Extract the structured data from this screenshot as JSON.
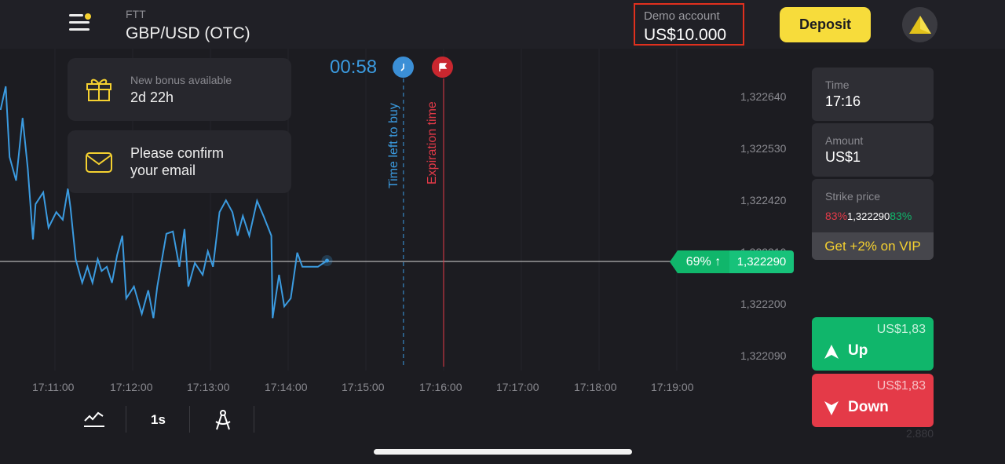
{
  "header": {
    "asset_category": "FTT",
    "asset_name": "GBP/USD (OTC)",
    "account_label": "Demo account",
    "balance": "US$10.000",
    "deposit_label": "Deposit"
  },
  "notifications": [
    {
      "title": "New bonus available",
      "value": "2d 22h",
      "icon": "gift-icon"
    },
    {
      "text_line1": "Please confirm",
      "text_line2": "your email",
      "icon": "envelope-icon"
    }
  ],
  "timer": {
    "countdown": "00:58",
    "buy_label": "Time left to buy",
    "expiration_label": "Expiration time"
  },
  "chart_data": {
    "type": "line",
    "x_ticks": [
      "17:11:00",
      "17:12:00",
      "17:13:00",
      "17:14:00",
      "17:15:00",
      "17:16:00",
      "17:17:00",
      "17:18:00",
      "17:19:00"
    ],
    "y_ticks": [
      "1,322640",
      "1,322530",
      "1,322420",
      "1,322310",
      "1,322200",
      "1,322090"
    ],
    "current_price": "1,322290",
    "current_payout": "69%",
    "buy_deadline": "17:15:29",
    "expiration": "17:16:00",
    "line_color": "#3b9be0",
    "points": [
      [
        "17:10:18",
        1322610
      ],
      [
        "17:10:22",
        1322660
      ],
      [
        "17:10:25",
        1322510
      ],
      [
        "17:10:30",
        1322460
      ],
      [
        "17:10:35",
        1322593
      ],
      [
        "17:10:39",
        1322485
      ],
      [
        "17:10:43",
        1322335
      ],
      [
        "17:10:45",
        1322410
      ],
      [
        "17:10:51",
        1322435
      ],
      [
        "17:10:55",
        1322360
      ],
      [
        "17:11:01",
        1322393
      ],
      [
        "17:11:06",
        1322377
      ],
      [
        "17:11:10",
        1322443
      ],
      [
        "17:11:12",
        1322402
      ],
      [
        "17:11:16",
        1322293
      ],
      [
        "17:11:21",
        1322243
      ],
      [
        "17:11:25",
        1322277
      ],
      [
        "17:11:29",
        1322243
      ],
      [
        "17:11:33",
        1322293
      ],
      [
        "17:11:36",
        1322268
      ],
      [
        "17:11:40",
        1322277
      ],
      [
        "17:11:44",
        1322243
      ],
      [
        "17:11:48",
        1322302
      ],
      [
        "17:11:52",
        1322343
      ],
      [
        "17:11:55",
        1322210
      ],
      [
        "17:12:01",
        1322235
      ],
      [
        "17:12:07",
        1322177
      ],
      [
        "17:12:12",
        1322227
      ],
      [
        "17:12:16",
        1322168
      ],
      [
        "17:12:19",
        1322235
      ],
      [
        "17:12:26",
        1322347
      ],
      [
        "17:12:31",
        1322352
      ],
      [
        "17:12:36",
        1322277
      ],
      [
        "17:12:40",
        1322357
      ],
      [
        "17:12:43",
        1322235
      ],
      [
        "17:12:48",
        1322285
      ],
      [
        "17:12:54",
        1322260
      ],
      [
        "17:12:58",
        1322310
      ],
      [
        "17:13:02",
        1322277
      ],
      [
        "17:13:07",
        1322393
      ],
      [
        "17:13:12",
        1322418
      ],
      [
        "17:13:17",
        1322393
      ],
      [
        "17:13:21",
        1322343
      ],
      [
        "17:13:25",
        1322385
      ],
      [
        "17:13:30",
        1322343
      ],
      [
        "17:13:36",
        1322417
      ],
      [
        "17:13:41",
        1322385
      ],
      [
        "17:13:47",
        1322343
      ],
      [
        "17:13:48",
        1322168
      ],
      [
        "17:13:53",
        1322260
      ],
      [
        "17:13:57",
        1322193
      ],
      [
        "17:14:02",
        1322210
      ],
      [
        "17:14:07",
        1322307
      ],
      [
        "17:14:11",
        1322277
      ],
      [
        "17:14:23",
        1322277
      ],
      [
        "17:14:30",
        1322290
      ]
    ]
  },
  "panel": {
    "time_label": "Time",
    "time_value": "17:16",
    "amount_label": "Amount",
    "amount_value": "US$1",
    "strike_label": "Strike price",
    "strike_down_pct": "83%",
    "strike_value": "1,322290",
    "strike_up_pct": "83%",
    "vip_label": "Get +2% on VIP"
  },
  "trade": {
    "up_payout": "US$1,83",
    "up_label": "Up",
    "down_payout": "US$1,83",
    "down_label": "Down",
    "footer_value": "2.880"
  },
  "toolbar": {
    "timeframe": "1s"
  },
  "colors": {
    "up": "#10b66b",
    "down": "#e43a48",
    "accent": "#f7dc3b",
    "line": "#3b9be0"
  }
}
